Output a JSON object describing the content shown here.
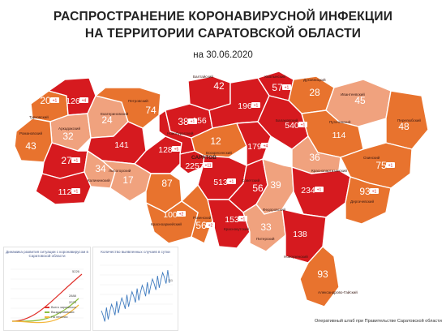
{
  "header": {
    "title_line1": "РАСПРОСТРАНЕНИЕ КОРОНАВИРУСНОЙ ИНФЕКЦИИ",
    "title_line2": "НА ТЕРРИТОРИИ САРАТОВСКОЙ ОБЛАСТИ",
    "date": "на 30.06.2020"
  },
  "legend_colors": {
    "high": "#d61a1f",
    "mid": "#e8732e",
    "low": "#f0a27e",
    "border": "#ffffff"
  },
  "districts": [
    {
      "id": "turkovsky",
      "name": "Турковский",
      "count": "20",
      "delta": "+1",
      "level": "mid"
    },
    {
      "id": "balashovsky",
      "name": "",
      "count": "126",
      "delta": "+4",
      "level": "high"
    },
    {
      "id": "arkadaksky",
      "name": "Аркадакский",
      "count": "32",
      "delta": "",
      "level": "low"
    },
    {
      "id": "romanovsky",
      "name": "Романовский",
      "count": "43",
      "delta": "",
      "level": "mid"
    },
    {
      "id": "ekaterinovsky",
      "name": "Екатериновский",
      "count": "24",
      "delta": "",
      "level": "low"
    },
    {
      "id": "petrovsky",
      "name": "Петровский",
      "count": "74",
      "delta": "",
      "level": "mid"
    },
    {
      "id": "rtishchevsky",
      "name": "",
      "count": "141",
      "delta": "",
      "level": "high"
    },
    {
      "id": "samoylovsky",
      "name": "",
      "count": "27",
      "delta": "+1",
      "level": "high"
    },
    {
      "id": "kalininsky",
      "name": "Калининский",
      "count": "34",
      "delta": "",
      "level": "low"
    },
    {
      "id": "krasnoarmeysky_w",
      "name": "",
      "count": "112",
      "delta": "+1",
      "level": "high"
    },
    {
      "id": "atkarsky",
      "name": "",
      "count": "128",
      "delta": "+5",
      "level": "high"
    },
    {
      "id": "lysogorsky",
      "name": "Лысогорский",
      "count": "17",
      "delta": "",
      "level": "low"
    },
    {
      "id": "tatishchevsky",
      "name": "",
      "count": "87",
      "delta": "",
      "level": "mid"
    },
    {
      "id": "saratov",
      "name": "САРАТОВ",
      "count": "2257",
      "delta": "+11",
      "level": "high"
    },
    {
      "id": "novoburassky",
      "name": "Новобурасский",
      "count": "38",
      "delta": "+1",
      "level": "high"
    },
    {
      "id": "bazarnokarabulaksky",
      "name": "",
      "count": "156",
      "delta": "",
      "level": "high"
    },
    {
      "id": "baltaysky",
      "name": "Балтайский",
      "count": "42",
      "delta": "",
      "level": "high"
    },
    {
      "id": "volsky",
      "name": "",
      "count": "196",
      "delta": "+1",
      "level": "high"
    },
    {
      "id": "khvalynsky",
      "name": "Хвалынский",
      "count": "57",
      "delta": "+1",
      "level": "high"
    },
    {
      "id": "dukhovnitsky",
      "name": "Духовницкий",
      "count": "28",
      "delta": "",
      "level": "mid"
    },
    {
      "id": "ivanteevsky",
      "name": "Ивантеевский",
      "count": "45",
      "delta": "",
      "level": "low"
    },
    {
      "id": "voskresensky",
      "name": "Воскресенский",
      "count": "12",
      "delta": "",
      "level": "mid"
    },
    {
      "id": "marksovsky",
      "name": "",
      "count": "179",
      "delta": "+4",
      "level": "high"
    },
    {
      "id": "balakovsky",
      "name": "Балаковский",
      "count": "540",
      "delta": "+1",
      "level": "high"
    },
    {
      "id": "pugachevsky",
      "name": "Пугачевский",
      "count": "114",
      "delta": "",
      "level": "mid"
    },
    {
      "id": "perelyubsky",
      "name": "Перелюбский",
      "count": "48",
      "delta": "",
      "level": "mid"
    },
    {
      "id": "krasnopartizansky",
      "name": "Краснопартизанский",
      "count": "36",
      "delta": "",
      "level": "low"
    },
    {
      "id": "ozinsky",
      "name": "Озинский",
      "count": "75",
      "delta": "+1",
      "level": "mid"
    },
    {
      "id": "engelsky",
      "name": "",
      "count": "513",
      "delta": "+1",
      "level": "high"
    },
    {
      "id": "sovetsky",
      "name": "Советский",
      "count": "56",
      "delta": "",
      "level": "high"
    },
    {
      "id": "fedorovsky",
      "name": "Федоровский",
      "count": "39",
      "delta": "",
      "level": "low"
    },
    {
      "id": "ershovsky",
      "name": "",
      "count": "234",
      "delta": "+1",
      "level": "high"
    },
    {
      "id": "dergachevsky",
      "name": "Дергачевский",
      "count": "93",
      "delta": "+1",
      "level": "mid"
    },
    {
      "id": "krasnokutsky",
      "name": "Краснокутский",
      "count": "153",
      "delta": "+1",
      "level": "high"
    },
    {
      "id": "rovensky",
      "name": "Ровенский",
      "count": "56",
      "delta": "+2",
      "level": "mid"
    },
    {
      "id": "krasnoarmeysky_s",
      "name": "Красноармейский",
      "count": "100",
      "delta": "+2",
      "level": "mid"
    },
    {
      "id": "piterski",
      "name": "Питерский",
      "count": "33",
      "delta": "",
      "level": "low"
    },
    {
      "id": "novouzensky",
      "name": "Новоузенский",
      "count": "138",
      "delta": "",
      "level": "high"
    },
    {
      "id": "aleksandrovogaysky",
      "name": "Александрово-Гайский",
      "count": "93",
      "delta": "",
      "level": "mid"
    }
  ],
  "mini_chart_1": {
    "title": "Динамика развития ситуации с коронавирусом в Саратовской области",
    "legend": [
      "Всего заразилось",
      "Выздоровевших",
      "На лечении"
    ],
    "end_labels": [
      "5226",
      "2888",
      "2073"
    ]
  },
  "mini_chart_2": {
    "title": "Количество выявленных случаев в сутки",
    "end_label": "111"
  },
  "footer": "Оперативный штаб при Правительстве Саратовской области"
}
